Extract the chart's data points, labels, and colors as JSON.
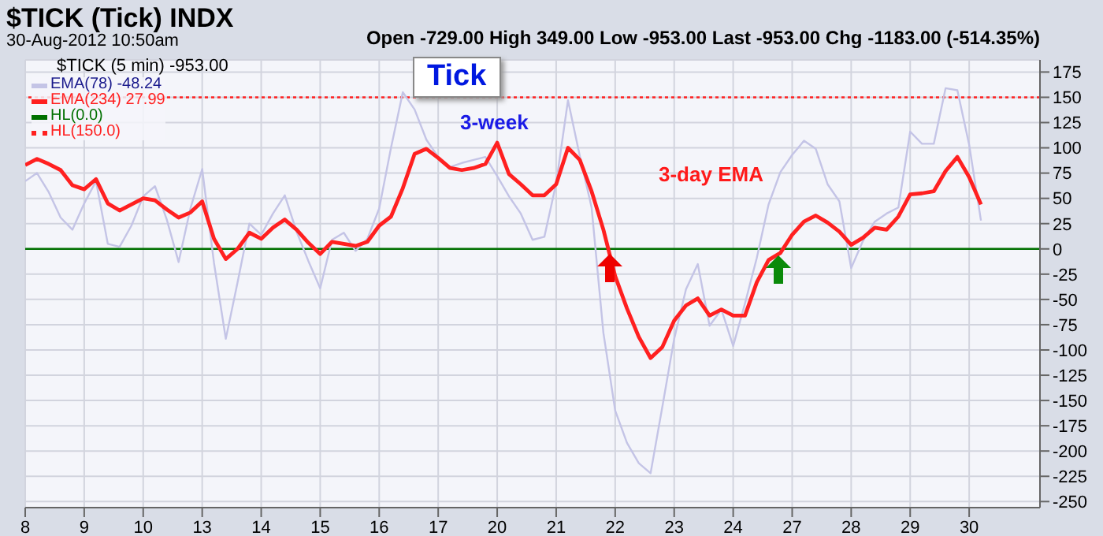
{
  "chart_data": {
    "type": "line",
    "title": "$TICK (Tick) INDX",
    "subtitle": "30-Aug-2012 10:50am",
    "annotations": [
      "Open -729.00 High 349.00 Low -953.00 Last -953.00 Chg -1183.00 (-514.35%)",
      "$TICK (5 min) -953.00",
      "Tick",
      "3-week",
      "3-day EMA"
    ],
    "categories": [
      "8",
      null,
      null,
      null,
      null,
      "9",
      null,
      null,
      null,
      null,
      "10",
      null,
      null,
      null,
      null,
      "13",
      null,
      null,
      null,
      null,
      "14",
      null,
      null,
      null,
      null,
      "15",
      null,
      null,
      null,
      null,
      "16",
      null,
      null,
      null,
      null,
      "17",
      null,
      null,
      null,
      null,
      "20",
      null,
      null,
      null,
      null,
      "21",
      null,
      null,
      null,
      null,
      "22",
      null,
      null,
      null,
      null,
      "23",
      null,
      null,
      null,
      null,
      "24",
      null,
      null,
      null,
      null,
      "27",
      null,
      null,
      null,
      null,
      "28",
      null,
      null,
      null,
      null,
      "29",
      null,
      null,
      null,
      null,
      "30",
      null,
      null,
      null,
      null,
      null,
      null
    ],
    "ylim": [
      -256,
      187
    ],
    "yticks": [
      -250,
      -225,
      -200,
      -175,
      -150,
      -125,
      -100,
      -75,
      -50,
      -25,
      0,
      25,
      50,
      75,
      100,
      125,
      150,
      175
    ],
    "grid": true,
    "legend": "top left",
    "series": [
      {
        "name": "EMA(78) -48.24",
        "color": "#c4c4e6",
        "values": [
          67,
          75,
          56,
          31,
          19,
          45,
          67,
          5,
          2,
          23,
          52,
          62,
          29,
          -13,
          40,
          79,
          -14,
          -89,
          -33,
          25,
          14,
          35,
          53,
          17,
          -12,
          -39,
          9,
          16,
          -2,
          10,
          40,
          100,
          155,
          138,
          108,
          91,
          81,
          85,
          88,
          91,
          72,
          52,
          35,
          9,
          12,
          65,
          147,
          92,
          41,
          -83,
          -160,
          -192,
          -212,
          -222,
          -156,
          -89,
          -40,
          -15,
          -76,
          -60,
          -96,
          -54,
          -9,
          44,
          76,
          93,
          107,
          99,
          64,
          47,
          -19,
          8,
          27,
          35,
          41,
          116,
          104,
          104,
          159,
          157,
          103,
          28,
          null,
          null,
          null,
          null,
          null
        ]
      },
      {
        "name": "EMA(234) 27.99",
        "color": "#ff2020",
        "values": [
          83,
          89,
          84,
          78,
          63,
          59,
          69,
          45,
          38,
          44,
          50,
          48,
          39,
          31,
          36,
          47,
          10,
          -10,
          0,
          16,
          10,
          21,
          29,
          19,
          6,
          -5,
          7,
          5,
          3,
          7,
          23,
          32,
          60,
          94,
          99,
          90,
          80,
          78,
          80,
          84,
          105,
          74,
          64,
          53,
          53,
          64,
          100,
          88,
          57,
          19,
          -27,
          -59,
          -87,
          -108,
          -97,
          -71,
          -56,
          -49,
          -66,
          -60,
          -66,
          -66,
          -33,
          -11,
          -4,
          14,
          27,
          33,
          26,
          17,
          4,
          11,
          21,
          19,
          32,
          54,
          55,
          57,
          77,
          91,
          71,
          44,
          null,
          null,
          null,
          null,
          null
        ]
      }
    ],
    "ref_lines": [
      {
        "axis": "y",
        "value": 0,
        "label": "HL(0.0)",
        "color": "#007000",
        "line_style": "solid"
      },
      {
        "axis": "y",
        "value": 150,
        "label": "HL(150.0)",
        "color": "#ff2020",
        "line_style": "dotted"
      }
    ]
  }
}
